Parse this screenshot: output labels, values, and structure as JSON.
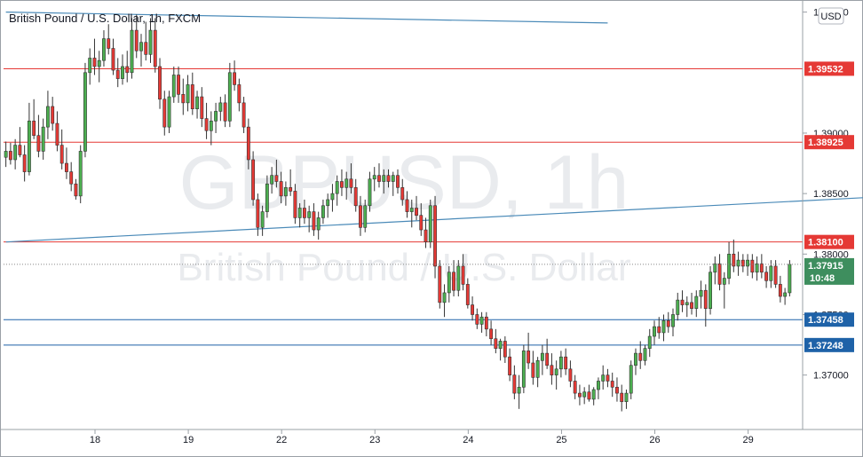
{
  "chart_data": {
    "type": "candlestick",
    "title": "British Pound / U.S. Dollar, 1h, FXCM",
    "symbol_watermark": "GBPUSD, 1h",
    "name_watermark": "British Pound / U.S. Dollar",
    "currency": "USD",
    "x_tick_labels": [
      "18",
      "19",
      "22",
      "23",
      "24",
      "25",
      "26",
      "29"
    ],
    "y_tick_labels": [
      "1.40000",
      "1.39000",
      "1.38500",
      "1.38000",
      "1.37500",
      "1.37000"
    ],
    "ylim": [
      1.3655,
      1.401
    ],
    "current_price": {
      "value": 1.37915,
      "label": "1.37915",
      "countdown": "10:48"
    },
    "horizontal_levels": [
      {
        "value": 1.39532,
        "label": "1.39532",
        "kind": "resistance",
        "color": "#e53935"
      },
      {
        "value": 1.38925,
        "label": "1.38925",
        "kind": "resistance",
        "color": "#e53935"
      },
      {
        "value": 1.381,
        "label": "1.38100",
        "kind": "resistance",
        "color": "#e53935"
      },
      {
        "value": 1.37458,
        "label": "1.37458",
        "kind": "support",
        "color": "#1e62a8"
      },
      {
        "value": 1.37248,
        "label": "1.37248",
        "kind": "support",
        "color": "#1e62a8"
      }
    ],
    "trend_lines": [
      {
        "from": [
          0,
          1.4
        ],
        "to": [
          129,
          1.3991
        ],
        "color": "#4a8ab8"
      },
      {
        "from": [
          0,
          1.381
        ],
        "to": [
          201,
          1.385
        ],
        "color": "#4a8ab8"
      }
    ],
    "candles": [
      [
        1.388,
        1.3893,
        1.3872,
        1.3885
      ],
      [
        1.3885,
        1.3892,
        1.3874,
        1.3878
      ],
      [
        1.3878,
        1.3895,
        1.387,
        1.389
      ],
      [
        1.389,
        1.3905,
        1.388,
        1.3882
      ],
      [
        1.3882,
        1.389,
        1.386,
        1.3868
      ],
      [
        1.3868,
        1.3925,
        1.3865,
        1.391
      ],
      [
        1.391,
        1.3928,
        1.3895,
        1.3898
      ],
      [
        1.3898,
        1.3915,
        1.388,
        1.3885
      ],
      [
        1.3885,
        1.3912,
        1.3878,
        1.3905
      ],
      [
        1.3905,
        1.3935,
        1.3895,
        1.3922
      ],
      [
        1.3922,
        1.393,
        1.3902,
        1.3908
      ],
      [
        1.3908,
        1.3918,
        1.3885,
        1.389
      ],
      [
        1.389,
        1.3903,
        1.387,
        1.3875
      ],
      [
        1.3875,
        1.3888,
        1.3862,
        1.3868
      ],
      [
        1.3868,
        1.3876,
        1.3852,
        1.3858
      ],
      [
        1.3858,
        1.3862,
        1.3845,
        1.3848
      ],
      [
        1.3848,
        1.389,
        1.3842,
        1.3885
      ],
      [
        1.3885,
        1.3958,
        1.388,
        1.395
      ],
      [
        1.395,
        1.397,
        1.394,
        1.3962
      ],
      [
        1.3962,
        1.3978,
        1.3948,
        1.3955
      ],
      [
        1.3955,
        1.3968,
        1.3942,
        1.396
      ],
      [
        1.396,
        1.3985,
        1.3955,
        1.3978
      ],
      [
        1.3978,
        1.399,
        1.3965,
        1.397
      ],
      [
        1.397,
        1.3978,
        1.3948,
        1.3952
      ],
      [
        1.3952,
        1.3962,
        1.3938,
        1.3945
      ],
      [
        1.3945,
        1.3965,
        1.394,
        1.3955
      ],
      [
        1.3955,
        1.3968,
        1.3942,
        1.395
      ],
      [
        1.395,
        1.3995,
        1.3945,
        1.3985
      ],
      [
        1.3985,
        1.3998,
        1.3962,
        1.3968
      ],
      [
        1.3968,
        1.3982,
        1.3955,
        1.3975
      ],
      [
        1.3975,
        1.3992,
        1.396,
        1.3965
      ],
      [
        1.3965,
        1.3995,
        1.3958,
        1.3985
      ],
      [
        1.3985,
        1.3995,
        1.395,
        1.3955
      ],
      [
        1.3955,
        1.3962,
        1.392,
        1.3928
      ],
      [
        1.3928,
        1.3935,
        1.3898,
        1.3905
      ],
      [
        1.3905,
        1.3935,
        1.39,
        1.393
      ],
      [
        1.393,
        1.3955,
        1.3925,
        1.3948
      ],
      [
        1.3948,
        1.3955,
        1.3925,
        1.3932
      ],
      [
        1.3932,
        1.3945,
        1.3915,
        1.3925
      ],
      [
        1.3925,
        1.3948,
        1.3918,
        1.394
      ],
      [
        1.394,
        1.395,
        1.3915,
        1.392
      ],
      [
        1.392,
        1.3935,
        1.3912,
        1.393
      ],
      [
        1.393,
        1.3938,
        1.3905,
        1.3912
      ],
      [
        1.3912,
        1.3925,
        1.3895,
        1.3902
      ],
      [
        1.3902,
        1.3918,
        1.389,
        1.391
      ],
      [
        1.391,
        1.3925,
        1.39,
        1.3918
      ],
      [
        1.3918,
        1.393,
        1.391,
        1.3925
      ],
      [
        1.3925,
        1.3932,
        1.3905,
        1.391
      ],
      [
        1.391,
        1.3958,
        1.3905,
        1.395
      ],
      [
        1.395,
        1.396,
        1.3935,
        1.394
      ],
      [
        1.394,
        1.3945,
        1.3918,
        1.3925
      ],
      [
        1.3925,
        1.393,
        1.39,
        1.3905
      ],
      [
        1.3905,
        1.3912,
        1.387,
        1.3878
      ],
      [
        1.3878,
        1.3885,
        1.384,
        1.3845
      ],
      [
        1.3845,
        1.385,
        1.3815,
        1.3822
      ],
      [
        1.3822,
        1.384,
        1.3815,
        1.3835
      ],
      [
        1.3835,
        1.3865,
        1.383,
        1.3858
      ],
      [
        1.3858,
        1.3872,
        1.385,
        1.3865
      ],
      [
        1.3865,
        1.3878,
        1.3855,
        1.386
      ],
      [
        1.386,
        1.3868,
        1.3842,
        1.3848
      ],
      [
        1.3848,
        1.386,
        1.384,
        1.3855
      ],
      [
        1.3855,
        1.387,
        1.3848,
        1.3852
      ],
      [
        1.3852,
        1.3858,
        1.3825,
        1.383
      ],
      [
        1.383,
        1.3842,
        1.3822,
        1.3838
      ],
      [
        1.3838,
        1.3845,
        1.3825,
        1.383
      ],
      [
        1.383,
        1.384,
        1.3818,
        1.3835
      ],
      [
        1.3835,
        1.3842,
        1.3815,
        1.382
      ],
      [
        1.382,
        1.3835,
        1.3812,
        1.383
      ],
      [
        1.383,
        1.3845,
        1.3825,
        1.384
      ],
      [
        1.384,
        1.385,
        1.383,
        1.3845
      ],
      [
        1.3845,
        1.3858,
        1.3835,
        1.385
      ],
      [
        1.385,
        1.3865,
        1.384,
        1.386
      ],
      [
        1.386,
        1.387,
        1.3848,
        1.3855
      ],
      [
        1.3855,
        1.3868,
        1.3845,
        1.3862
      ],
      [
        1.3862,
        1.3875,
        1.385,
        1.3855
      ],
      [
        1.3855,
        1.3862,
        1.3835,
        1.384
      ],
      [
        1.384,
        1.3848,
        1.3815,
        1.3822
      ],
      [
        1.3822,
        1.3845,
        1.3818,
        1.384
      ],
      [
        1.384,
        1.3868,
        1.3835,
        1.3862
      ],
      [
        1.3862,
        1.3872,
        1.3852,
        1.3865
      ],
      [
        1.3865,
        1.3875,
        1.3855,
        1.386
      ],
      [
        1.386,
        1.387,
        1.385,
        1.3865
      ],
      [
        1.3865,
        1.387,
        1.3855,
        1.386
      ],
      [
        1.386,
        1.3868,
        1.3848,
        1.3865
      ],
      [
        1.3865,
        1.387,
        1.385,
        1.3855
      ],
      [
        1.3855,
        1.3862,
        1.384,
        1.3845
      ],
      [
        1.3845,
        1.3852,
        1.383,
        1.3835
      ],
      [
        1.3835,
        1.3845,
        1.3822,
        1.3838
      ],
      [
        1.3838,
        1.3848,
        1.3828,
        1.3832
      ],
      [
        1.3832,
        1.3842,
        1.3815,
        1.382
      ],
      [
        1.382,
        1.383,
        1.3805,
        1.381
      ],
      [
        1.381,
        1.3845,
        1.3805,
        1.384
      ],
      [
        1.384,
        1.3848,
        1.378,
        1.379
      ],
      [
        1.379,
        1.3795,
        1.3755,
        1.376
      ],
      [
        1.376,
        1.3775,
        1.3748,
        1.3768
      ],
      [
        1.3768,
        1.379,
        1.376,
        1.3785
      ],
      [
        1.3785,
        1.3795,
        1.3765,
        1.377
      ],
      [
        1.377,
        1.3795,
        1.3765,
        1.379
      ],
      [
        1.379,
        1.38,
        1.377,
        1.3775
      ],
      [
        1.3775,
        1.378,
        1.3755,
        1.3758
      ],
      [
        1.3758,
        1.3765,
        1.3745,
        1.375
      ],
      [
        1.375,
        1.3755,
        1.3738,
        1.3742
      ],
      [
        1.3742,
        1.3752,
        1.3735,
        1.3748
      ],
      [
        1.3748,
        1.3752,
        1.3732,
        1.3738
      ],
      [
        1.3738,
        1.3745,
        1.3725,
        1.373
      ],
      [
        1.373,
        1.3738,
        1.3718,
        1.3722
      ],
      [
        1.3722,
        1.373,
        1.3712,
        1.3728
      ],
      [
        1.3728,
        1.3732,
        1.371,
        1.3715
      ],
      [
        1.3715,
        1.3722,
        1.3695,
        1.37
      ],
      [
        1.37,
        1.3708,
        1.368,
        1.3685
      ],
      [
        1.3685,
        1.37,
        1.3672,
        1.369
      ],
      [
        1.369,
        1.3725,
        1.3685,
        1.372
      ],
      [
        1.372,
        1.3735,
        1.3705,
        1.371
      ],
      [
        1.371,
        1.372,
        1.3692,
        1.3698
      ],
      [
        1.3698,
        1.3715,
        1.369,
        1.3712
      ],
      [
        1.3712,
        1.3725,
        1.37,
        1.3718
      ],
      [
        1.3718,
        1.373,
        1.3705,
        1.3708
      ],
      [
        1.3708,
        1.3718,
        1.3692,
        1.37
      ],
      [
        1.37,
        1.3712,
        1.3688,
        1.3705
      ],
      [
        1.3705,
        1.372,
        1.3698,
        1.3715
      ],
      [
        1.3715,
        1.3722,
        1.37,
        1.3705
      ],
      [
        1.3705,
        1.3712,
        1.369,
        1.3695
      ],
      [
        1.3695,
        1.37,
        1.368,
        1.3685
      ],
      [
        1.3685,
        1.3692,
        1.3675,
        1.3682
      ],
      [
        1.3682,
        1.369,
        1.3676,
        1.3686
      ],
      [
        1.3686,
        1.3692,
        1.3678,
        1.368
      ],
      [
        1.368,
        1.369,
        1.3675,
        1.3688
      ],
      [
        1.3688,
        1.3698,
        1.368,
        1.3695
      ],
      [
        1.3695,
        1.3708,
        1.3688,
        1.37
      ],
      [
        1.37,
        1.3705,
        1.369,
        1.3695
      ],
      [
        1.3695,
        1.3702,
        1.3682,
        1.369
      ],
      [
        1.369,
        1.3698,
        1.3678,
        1.3685
      ],
      [
        1.3685,
        1.3692,
        1.367,
        1.3678
      ],
      [
        1.3678,
        1.3688,
        1.3672,
        1.3685
      ],
      [
        1.3685,
        1.3712,
        1.368,
        1.3708
      ],
      [
        1.3708,
        1.3722,
        1.37,
        1.3718
      ],
      [
        1.3718,
        1.3728,
        1.3705,
        1.3712
      ],
      [
        1.3712,
        1.3725,
        1.3708,
        1.3722
      ],
      [
        1.3722,
        1.3738,
        1.3715,
        1.3732
      ],
      [
        1.3732,
        1.3745,
        1.3725,
        1.374
      ],
      [
        1.374,
        1.3748,
        1.373,
        1.3735
      ],
      [
        1.3735,
        1.375,
        1.3728,
        1.3745
      ],
      [
        1.3745,
        1.3752,
        1.3735,
        1.374
      ],
      [
        1.374,
        1.3755,
        1.3732,
        1.375
      ],
      [
        1.375,
        1.3768,
        1.3745,
        1.3762
      ],
      [
        1.3762,
        1.377,
        1.3752,
        1.3758
      ],
      [
        1.3758,
        1.3765,
        1.3748,
        1.376
      ],
      [
        1.376,
        1.3768,
        1.375,
        1.3755
      ],
      [
        1.3755,
        1.377,
        1.3748,
        1.3765
      ],
      [
        1.3765,
        1.3778,
        1.3755,
        1.377
      ],
      [
        1.377,
        1.3775,
        1.374,
        1.3755
      ],
      [
        1.3755,
        1.379,
        1.375,
        1.3785
      ],
      [
        1.3785,
        1.3798,
        1.3775,
        1.3792
      ],
      [
        1.3792,
        1.38,
        1.377,
        1.3775
      ],
      [
        1.3775,
        1.3785,
        1.3755,
        1.378
      ],
      [
        1.378,
        1.381,
        1.3775,
        1.38
      ],
      [
        1.38,
        1.3812,
        1.3785,
        1.379
      ],
      [
        1.379,
        1.3802,
        1.3782,
        1.3795
      ],
      [
        1.3795,
        1.38,
        1.3785,
        1.379
      ],
      [
        1.379,
        1.38,
        1.3782,
        1.3795
      ],
      [
        1.3795,
        1.38,
        1.378,
        1.3785
      ],
      [
        1.3785,
        1.3798,
        1.3778,
        1.3792
      ],
      [
        1.3792,
        1.38,
        1.378,
        1.3785
      ],
      [
        1.3785,
        1.379,
        1.3772,
        1.3778
      ],
      [
        1.3778,
        1.3795,
        1.3772,
        1.379
      ],
      [
        1.379,
        1.3795,
        1.3772,
        1.3775
      ],
      [
        1.3775,
        1.3782,
        1.376,
        1.3765
      ],
      [
        1.3765,
        1.3772,
        1.3758,
        1.3768
      ],
      [
        1.3768,
        1.3795,
        1.3765,
        1.37915
      ]
    ]
  }
}
